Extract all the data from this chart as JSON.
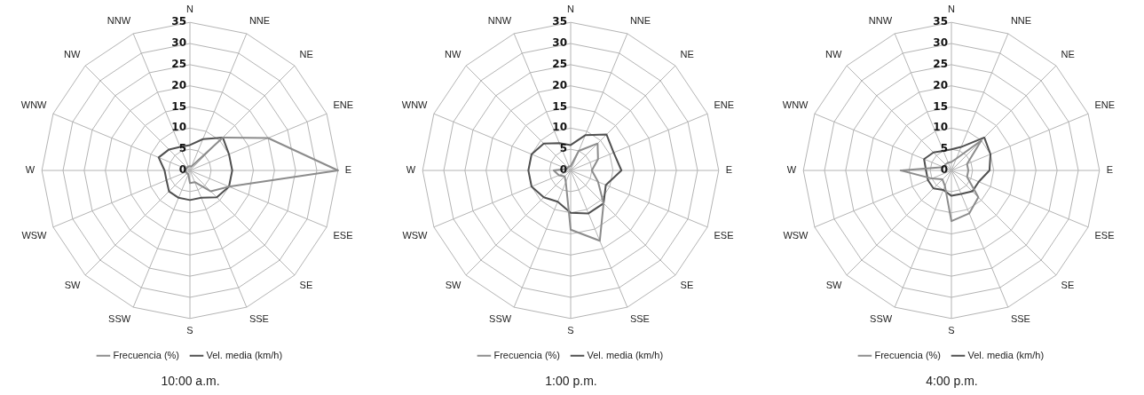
{
  "chart_data": [
    {
      "type": "radar",
      "title": "10:00 a.m.",
      "categories": [
        "N",
        "NNE",
        "NE",
        "ENE",
        "E",
        "ESE",
        "SE",
        "SSE",
        "S",
        "SSW",
        "SW",
        "WSW",
        "W",
        "WNW",
        "NW",
        "NNW"
      ],
      "ylim": [
        0,
        35
      ],
      "yticks": [
        0,
        5,
        10,
        15,
        20,
        25,
        30,
        35
      ],
      "grid": true,
      "legend": "bottom",
      "marker": "none",
      "line_style": "solid",
      "series": [
        {
          "name": "Frecuencia (%)",
          "color": "#8c8c8c",
          "values": [
            1,
            1,
            11,
            20,
            35,
            10,
            7,
            3,
            3,
            1,
            1,
            1,
            1,
            1,
            1,
            1
          ]
        },
        {
          "name": "Vel. media (km/h)",
          "color": "#505050",
          "values": [
            6,
            8,
            11,
            10,
            10,
            10,
            9,
            7,
            7,
            7,
            7,
            6,
            6,
            8,
            7,
            6
          ]
        }
      ]
    },
    {
      "type": "radar",
      "title": "1:00 p.m.",
      "categories": [
        "N",
        "NNE",
        "NE",
        "ENE",
        "E",
        "ESE",
        "SE",
        "SSE",
        "S",
        "SSW",
        "SW",
        "WSW",
        "W",
        "WNW",
        "NW",
        "NNW"
      ],
      "ylim": [
        0,
        35
      ],
      "yticks": [
        0,
        5,
        10,
        15,
        20,
        25,
        30,
        35
      ],
      "grid": true,
      "legend": "bottom",
      "marker": "none",
      "line_style": "solid",
      "series": [
        {
          "name": "Frecuencia (%)",
          "color": "#8c8c8c",
          "values": [
            1,
            5,
            9,
            7,
            5,
            7,
            11,
            18,
            14,
            3,
            2,
            3,
            4,
            1,
            1,
            1
          ]
        },
        {
          "name": "Vel. media (km/h)",
          "color": "#505050",
          "values": [
            6,
            9,
            12,
            11,
            12,
            9,
            11,
            11,
            10,
            8,
            9,
            10,
            10,
            10,
            9,
            7
          ]
        }
      ]
    },
    {
      "type": "radar",
      "title": "4:00 p.m.",
      "categories": [
        "N",
        "NNE",
        "NE",
        "ENE",
        "E",
        "ESE",
        "SE",
        "SSE",
        "S",
        "SSW",
        "SW",
        "WSW",
        "W",
        "WNW",
        "NW",
        "NNW"
      ],
      "ylim": [
        0,
        35
      ],
      "yticks": [
        0,
        5,
        10,
        15,
        20,
        25,
        30,
        35
      ],
      "grid": true,
      "legend": "bottom",
      "marker": "none",
      "line_style": "solid",
      "series": [
        {
          "name": "Frecuencia (%)",
          "color": "#8c8c8c",
          "values": [
            2,
            3,
            10,
            4,
            4,
            4,
            9,
            11,
            12,
            4,
            3,
            5,
            12,
            2,
            2,
            2
          ]
        },
        {
          "name": "Vel. media (km/h)",
          "color": "#505050",
          "values": [
            5,
            6,
            11,
            10,
            9,
            7,
            7,
            6,
            6,
            5,
            6,
            6,
            6,
            7,
            6,
            5
          ]
        }
      ]
    }
  ]
}
